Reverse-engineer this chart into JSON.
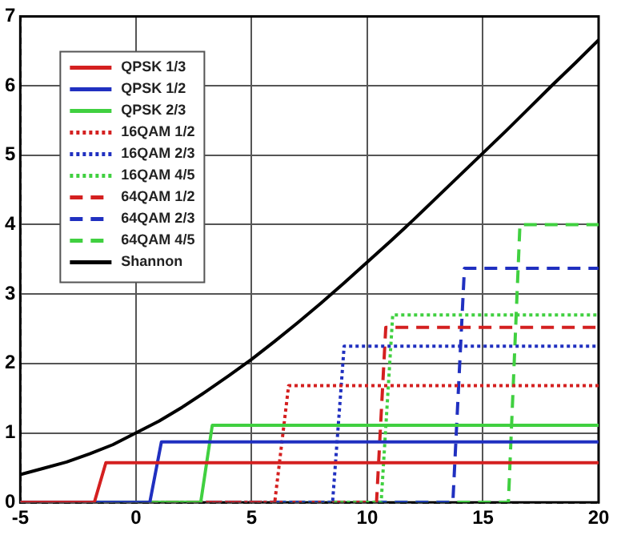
{
  "chart_data": {
    "type": "line",
    "xlim": [
      -5,
      20
    ],
    "ylim": [
      0,
      7
    ],
    "xticks": [
      -5,
      0,
      5,
      10,
      15,
      20
    ],
    "yticks": [
      0,
      1,
      2,
      3,
      4,
      5,
      6,
      7
    ],
    "grid": true,
    "legend": "top left",
    "marker": "none",
    "series": [
      {
        "name": "QPSK 1/3",
        "color": "#d42020",
        "line_style": "solid",
        "x": [
          -5,
          -1.8,
          -1.3,
          20
        ],
        "values": [
          0,
          0,
          0.57,
          0.57
        ]
      },
      {
        "name": "QPSK 1/2",
        "color": "#2030c0",
        "line_style": "solid",
        "x": [
          -5,
          0.6,
          1.1,
          20
        ],
        "values": [
          0,
          0,
          0.87,
          0.87
        ]
      },
      {
        "name": "QPSK 2/3",
        "color": "#40d040",
        "line_style": "solid",
        "x": [
          -5,
          2.8,
          3.3,
          20
        ],
        "values": [
          0,
          0,
          1.11,
          1.11
        ]
      },
      {
        "name": "16QAM 1/2",
        "color": "#d42020",
        "line_style": "dotted",
        "x": [
          -5,
          6,
          6.6,
          20
        ],
        "values": [
          0,
          0,
          1.68,
          1.68
        ]
      },
      {
        "name": "16QAM 2/3",
        "color": "#2030c0",
        "line_style": "dotted",
        "x": [
          -5,
          8.5,
          9,
          20
        ],
        "values": [
          0,
          0,
          2.25,
          2.25
        ]
      },
      {
        "name": "16QAM 4/5",
        "color": "#40d040",
        "line_style": "dotted",
        "x": [
          -5,
          10.6,
          11.1,
          20
        ],
        "values": [
          0,
          0,
          2.7,
          2.7
        ]
      },
      {
        "name": "64QAM 1/2",
        "color": "#d42020",
        "line_style": "dashed",
        "x": [
          -5,
          10.4,
          10.8,
          20
        ],
        "values": [
          0,
          0,
          2.52,
          2.52
        ]
      },
      {
        "name": "64QAM 2/3",
        "color": "#2030c0",
        "line_style": "dashed",
        "x": [
          -5,
          13.7,
          14.2,
          20
        ],
        "values": [
          0,
          0,
          3.37,
          3.37
        ]
      },
      {
        "name": "64QAM 4/5",
        "color": "#40d040",
        "line_style": "dashed",
        "x": [
          -5,
          16.1,
          16.6,
          20
        ],
        "values": [
          0,
          0,
          4.0,
          4.0
        ]
      },
      {
        "name": "Shannon",
        "color": "#000000",
        "line_style": "solid",
        "x": [
          -5,
          -4,
          -3,
          -2,
          -1,
          0,
          1,
          2,
          3,
          4,
          5,
          6,
          7,
          8,
          9,
          10,
          11,
          12,
          13,
          14,
          15,
          16,
          17,
          18,
          19,
          20
        ],
        "values": [
          0.4,
          0.49,
          0.58,
          0.7,
          0.83,
          1.0,
          1.17,
          1.37,
          1.59,
          1.82,
          2.06,
          2.32,
          2.59,
          2.87,
          3.16,
          3.46,
          3.76,
          4.07,
          4.39,
          4.71,
          5.03,
          5.35,
          5.68,
          6.01,
          6.33,
          6.66
        ]
      }
    ]
  }
}
